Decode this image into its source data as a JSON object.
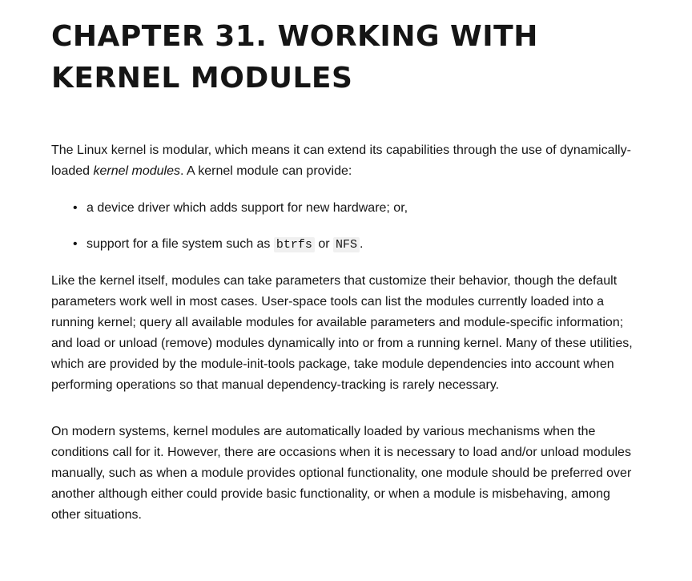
{
  "chapter": {
    "title": "CHAPTER 31. WORKING WITH KERNEL MODULES"
  },
  "intro": {
    "part1": "The Linux kernel is modular, which means it can extend its capabilities through the use of dynamically-loaded ",
    "emphasis": "kernel modules",
    "part2": ". A kernel module can provide:"
  },
  "list": {
    "bullet": "•",
    "item1": "a device driver which adds support for new hardware; or,",
    "item2_prefix": "support for a file system such as ",
    "item2_code1": "btrfs",
    "item2_middle": " or ",
    "item2_code2": "NFS",
    "item2_suffix": "."
  },
  "paragraph2": "Like the kernel itself, modules can take parameters that customize their behavior, though the default parameters work well in most cases. User-space tools can list the modules currently loaded into a running kernel; query all available modules for available parameters and module-specific information; and load or unload (remove) modules dynamically into or from a running kernel. Many of these utilities, which are provided by the module-init-tools package, take module dependencies into account when performing operations so that manual dependency-tracking is rarely necessary.",
  "paragraph3": "On modern systems, kernel modules are automatically loaded by various mechanisms when the conditions call for it. However, there are occasions when it is necessary to load and/or unload modules manually, such as when a module provides optional functionality, one module should be preferred over another although either could provide basic functionality, or when a module is misbehaving, among other situations."
}
